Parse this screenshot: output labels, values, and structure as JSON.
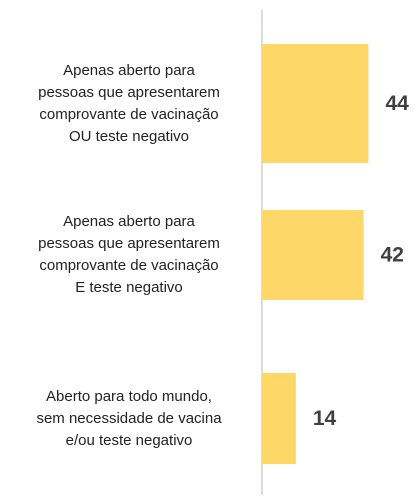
{
  "chart_data": {
    "type": "bar",
    "orientation": "horizontal",
    "categories": [
      "Apenas aberto para\npessoas que apresentarem\ncomprovante de vacinação\nOU teste negativo",
      "Apenas aberto para\npessoas que apresentarem\ncomprovante de vacinação\nE teste negativo",
      "Aberto para todo mundo,\nsem necessidade de vacina\ne/ou teste negativo"
    ],
    "values": [
      44,
      42,
      14
    ],
    "color": "#fdd868",
    "xlim": [
      0,
      50
    ]
  }
}
